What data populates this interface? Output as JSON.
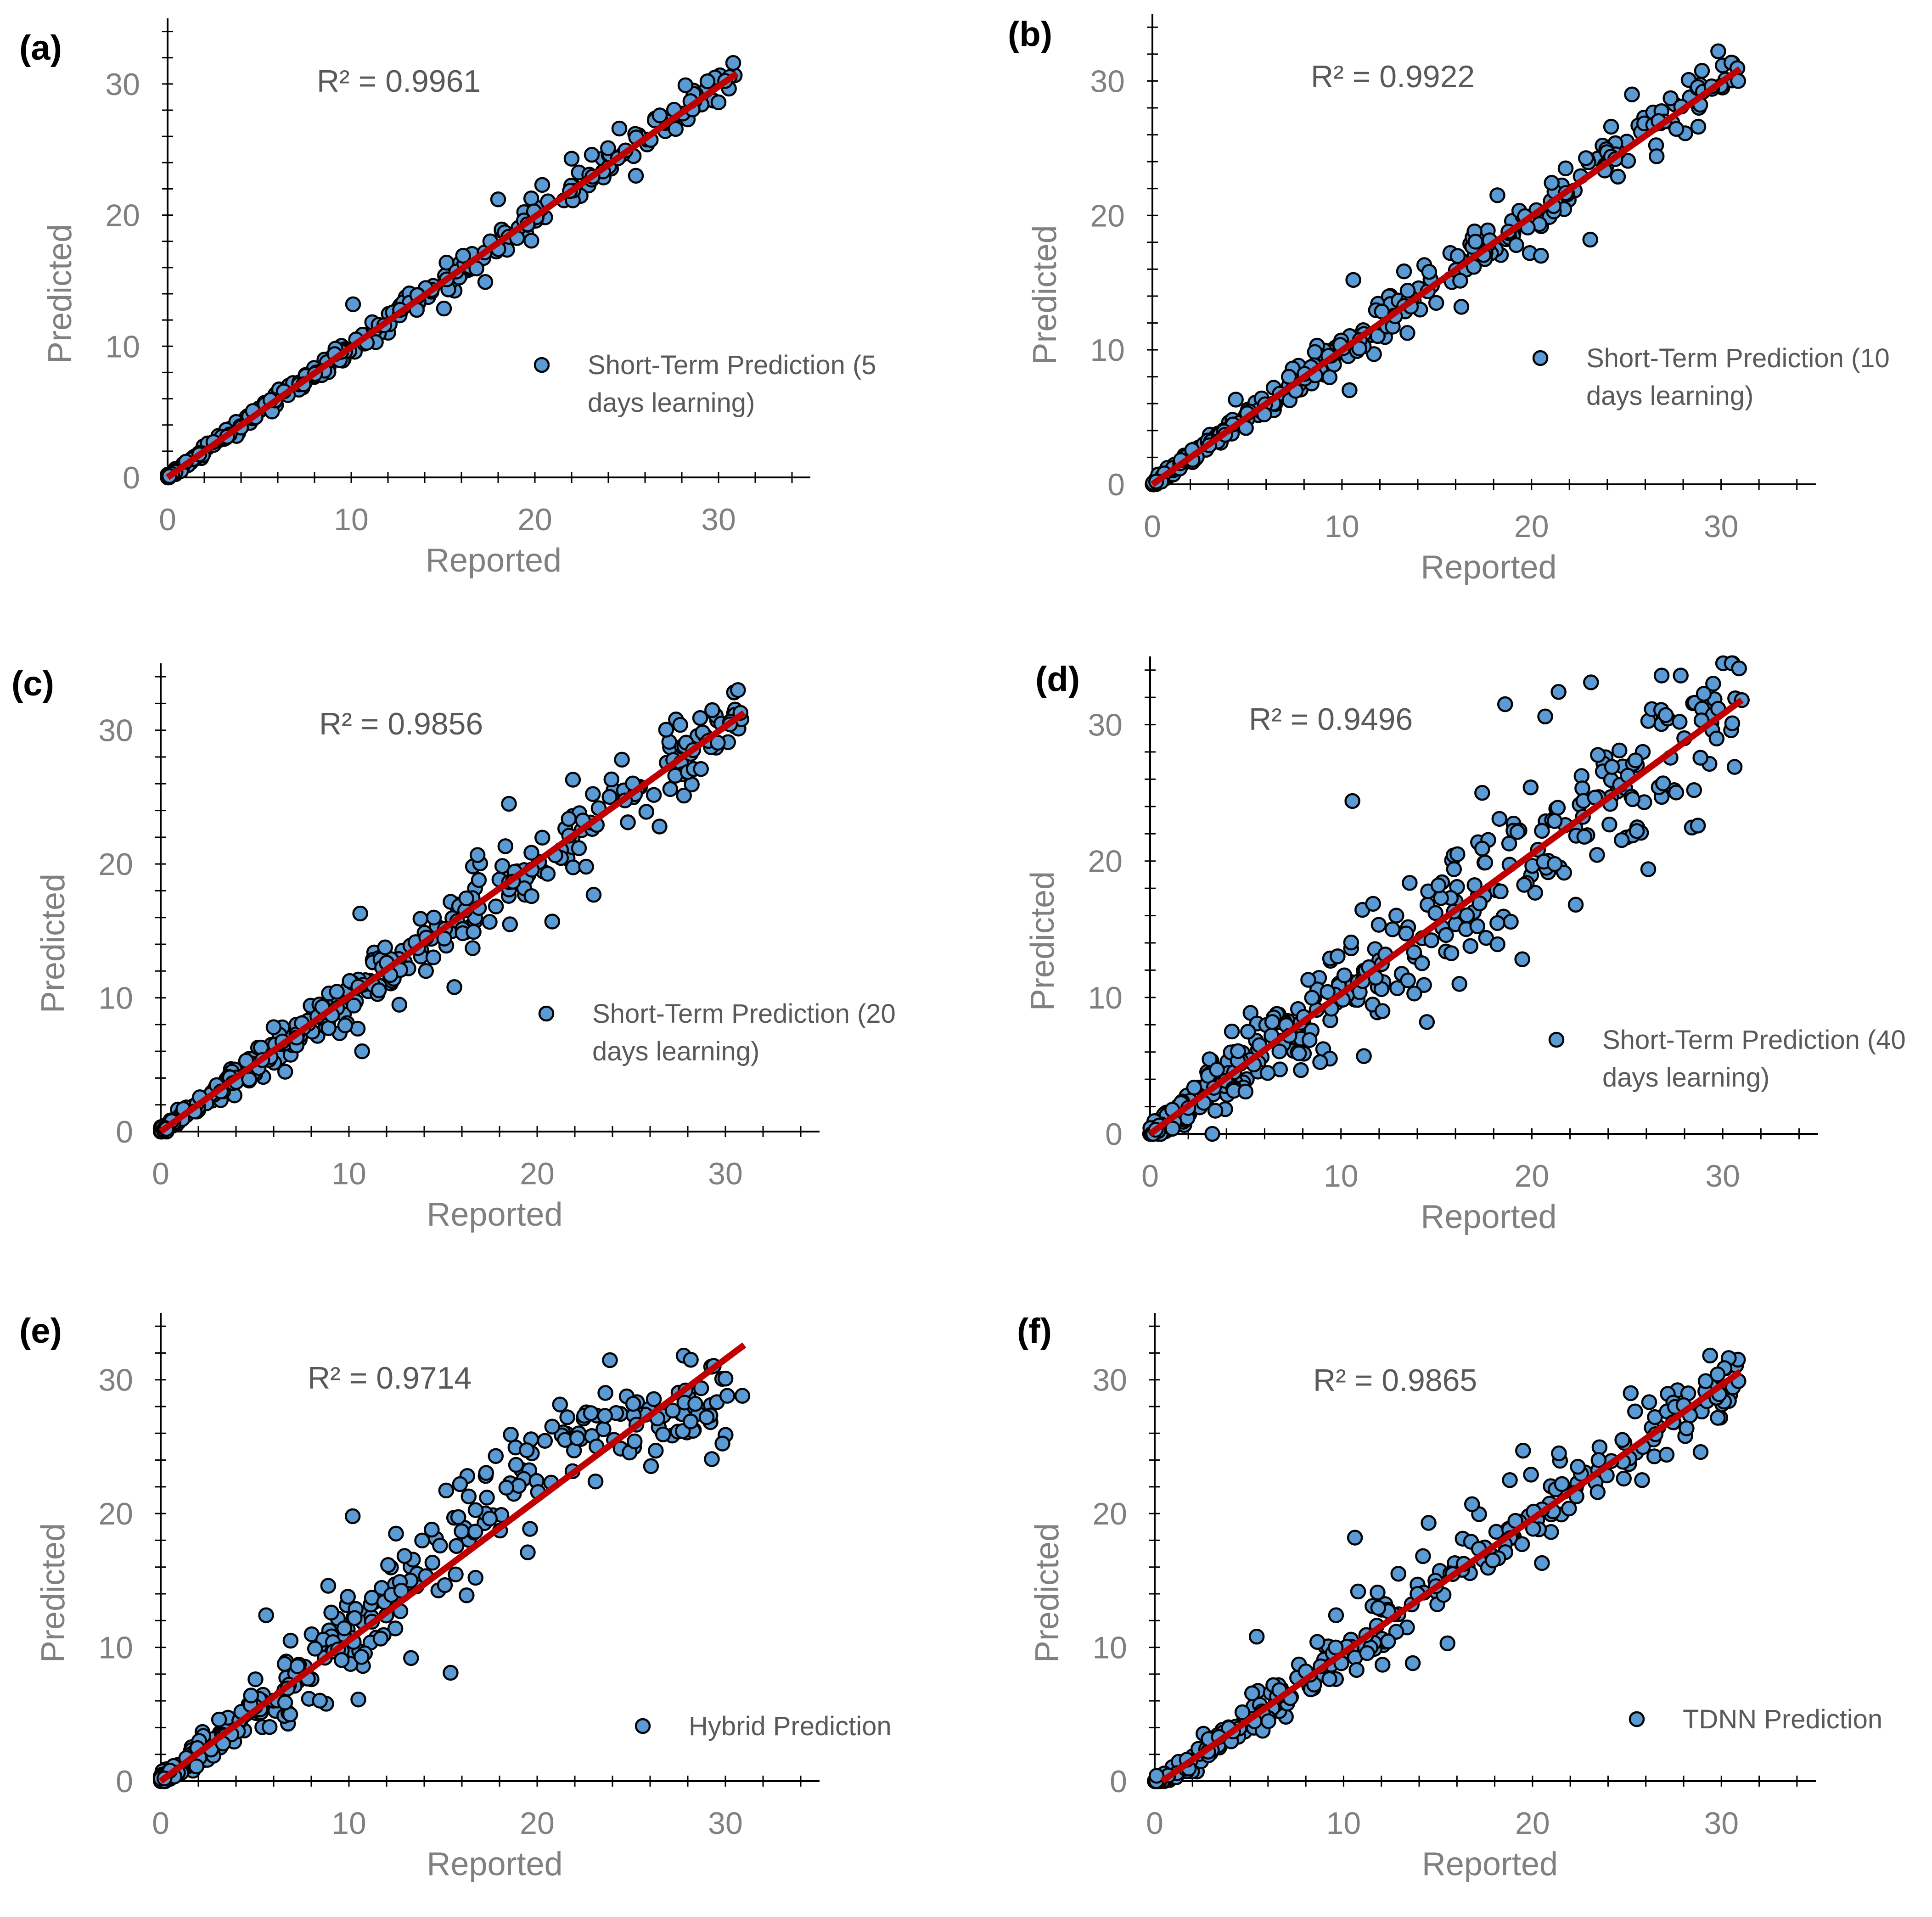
{
  "figure": {
    "x_axis_title": "Reported",
    "y_axis_title": "Predicted",
    "colors": {
      "marker_fill": "#5b9bd5",
      "marker_edge": "#000000",
      "fit_line": "#c00000",
      "axis": "#000000",
      "label": "#808080",
      "text": "#595959"
    }
  },
  "chart_data": [
    {
      "type": "scatter",
      "panel_label": "(a)",
      "r2_label": "R² = 0.9961",
      "legend_lines": [
        "Short-Term Prediction (5",
        "days learning)"
      ],
      "xlabel": "Reported",
      "ylabel": "Predicted",
      "xlim": [
        0,
        35
      ],
      "ylim": [
        0,
        35
      ],
      "xticks": [
        0,
        10,
        20,
        30
      ],
      "yticks": [
        0,
        10,
        20,
        30
      ],
      "trendline": [
        [
          0,
          0
        ],
        [
          31,
          30.8
        ]
      ],
      "noise": 0.55,
      "seed": 11,
      "n_points": 300,
      "points": [
        [
          0.1,
          0.1
        ],
        [
          1.0,
          1.2
        ],
        [
          2.5,
          2.7
        ],
        [
          4.0,
          3.8
        ],
        [
          5.6,
          5.9
        ],
        [
          7.4,
          7.1
        ],
        [
          9.1,
          9.4
        ],
        [
          10.1,
          13.2
        ],
        [
          11.8,
          11.6
        ],
        [
          13.6,
          13.9
        ],
        [
          15.2,
          15.1
        ],
        [
          17.3,
          14.9
        ],
        [
          18.0,
          21.2
        ],
        [
          19.6,
          19.3
        ],
        [
          20.4,
          22.3
        ],
        [
          22.0,
          24.3
        ],
        [
          23.1,
          24.6
        ],
        [
          24.6,
          26.6
        ],
        [
          25.5,
          23.0
        ],
        [
          26.8,
          27.6
        ],
        [
          28.2,
          29.9
        ],
        [
          29.4,
          30.2
        ],
        [
          30.0,
          28.6
        ],
        [
          30.8,
          31.6
        ]
      ]
    },
    {
      "type": "scatter",
      "panel_label": "(b)",
      "r2_label": "R² = 0.9922",
      "legend_lines": [
        "Short-Term Prediction (10",
        "days learning)"
      ],
      "xlabel": "Reported",
      "ylabel": "Predicted",
      "xlim": [
        0,
        35
      ],
      "ylim": [
        0,
        35
      ],
      "xticks": [
        0,
        10,
        20,
        30
      ],
      "yticks": [
        0,
        10,
        20,
        30
      ],
      "trendline": [
        [
          0,
          0
        ],
        [
          31,
          30.9
        ]
      ],
      "noise": 0.9,
      "seed": 23,
      "n_points": 320,
      "points": [
        [
          0.2,
          0.2
        ],
        [
          1.5,
          1.8
        ],
        [
          3.0,
          2.9
        ],
        [
          4.4,
          6.3
        ],
        [
          5.9,
          5.2
        ],
        [
          7.2,
          8.0
        ],
        [
          8.6,
          8.1
        ],
        [
          10.4,
          7.0
        ],
        [
          10.6,
          15.2
        ],
        [
          12.8,
          12.5
        ],
        [
          14.6,
          15.8
        ],
        [
          16.3,
          13.2
        ],
        [
          18.2,
          21.5
        ],
        [
          19.8,
          19.1
        ],
        [
          20.5,
          17.0
        ],
        [
          21.8,
          23.5
        ],
        [
          23.1,
          18.2
        ],
        [
          24.2,
          26.6
        ],
        [
          25.3,
          29.0
        ],
        [
          26.6,
          24.4
        ],
        [
          27.9,
          28.1
        ],
        [
          28.8,
          26.6
        ],
        [
          29.5,
          29.6
        ],
        [
          30.9,
          30.0
        ]
      ]
    },
    {
      "type": "scatter",
      "panel_label": "(c)",
      "r2_label": "R² = 0.9856",
      "legend_lines": [
        "Short-Term Prediction (20",
        "days learning)"
      ],
      "xlabel": "Reported",
      "ylabel": "Predicted",
      "xlim": [
        0,
        35
      ],
      "ylim": [
        0,
        35
      ],
      "xticks": [
        0,
        10,
        20,
        30
      ],
      "yticks": [
        0,
        10,
        20,
        30
      ],
      "trendline": [
        [
          0,
          0
        ],
        [
          31,
          31.3
        ]
      ],
      "noise": 1.2,
      "seed": 37,
      "n_points": 340,
      "points": [
        [
          0.3,
          0.2
        ],
        [
          1.8,
          1.5
        ],
        [
          3.2,
          3.0
        ],
        [
          4.7,
          3.9
        ],
        [
          6.0,
          7.8
        ],
        [
          7.5,
          8.1
        ],
        [
          9.1,
          8.7
        ],
        [
          10.6,
          16.3
        ],
        [
          10.7,
          6.0
        ],
        [
          12.2,
          11.7
        ],
        [
          13.8,
          15.9
        ],
        [
          15.6,
          10.8
        ],
        [
          16.9,
          18.8
        ],
        [
          18.5,
          24.5
        ],
        [
          19.7,
          17.6
        ],
        [
          20.8,
          15.7
        ],
        [
          21.9,
          26.3
        ],
        [
          22.6,
          19.8
        ],
        [
          23.0,
          17.7
        ],
        [
          24.5,
          27.8
        ],
        [
          25.8,
          23.9
        ],
        [
          26.5,
          22.8
        ],
        [
          27.6,
          30.4
        ],
        [
          28.7,
          27.1
        ],
        [
          29.3,
          31.5
        ],
        [
          30.8,
          31.3
        ]
      ]
    },
    {
      "type": "scatter",
      "panel_label": "(d)",
      "r2_label": "R² = 0.9496",
      "legend_lines": [
        "Short-Term Prediction (40",
        "days learning)"
      ],
      "xlabel": "Reported",
      "ylabel": "Predicted",
      "xlim": [
        0,
        35
      ],
      "ylim": [
        0,
        35
      ],
      "xticks": [
        0,
        10,
        20,
        30
      ],
      "yticks": [
        0,
        10,
        20,
        30
      ],
      "trendline": [
        [
          0,
          0
        ],
        [
          31,
          31.8
        ]
      ],
      "noise": 2.6,
      "seed": 41,
      "n_points": 360,
      "points": [
        [
          0.3,
          0.3
        ],
        [
          2.0,
          1.9
        ],
        [
          3.5,
          4.7
        ],
        [
          5.0,
          3.1
        ],
        [
          6.4,
          8.2
        ],
        [
          7.8,
          5.9
        ],
        [
          9.3,
          10.4
        ],
        [
          10.6,
          24.4
        ],
        [
          11.2,
          5.7
        ],
        [
          12.9,
          16.0
        ],
        [
          13.6,
          18.4
        ],
        [
          14.5,
          8.2
        ],
        [
          16.1,
          20.5
        ],
        [
          17.4,
          25.0
        ],
        [
          18.2,
          13.9
        ],
        [
          18.6,
          31.5
        ],
        [
          19.5,
          12.8
        ],
        [
          20.7,
          30.6
        ],
        [
          21.4,
          32.4
        ],
        [
          22.3,
          16.8
        ],
        [
          23.1,
          33.1
        ],
        [
          24.2,
          26.9
        ],
        [
          25.5,
          22.2
        ],
        [
          26.1,
          19.4
        ],
        [
          26.8,
          33.6
        ],
        [
          27.8,
          33.6
        ],
        [
          28.5,
          25.2
        ],
        [
          28.7,
          22.6
        ],
        [
          29.5,
          33.0
        ],
        [
          30.5,
          30.1
        ],
        [
          31.0,
          31.8
        ]
      ]
    },
    {
      "type": "scatter",
      "panel_label": "(e)",
      "r2_label": "R² = 0.9714",
      "legend_lines": [
        "Hybrid Prediction"
      ],
      "xlabel": "Reported",
      "ylabel": "Predicted",
      "xlim": [
        0,
        35
      ],
      "ylim": [
        0,
        35
      ],
      "xticks": [
        0,
        10,
        20,
        30
      ],
      "yticks": [
        0,
        10,
        20,
        30
      ],
      "trendline": [
        [
          0,
          0
        ],
        [
          31,
          32.6
        ]
      ],
      "noise": 1.8,
      "seed": 53,
      "n_points": 340,
      "curve": "saturate",
      "points": [
        [
          0.2,
          0.2
        ],
        [
          1.9,
          1.1
        ],
        [
          3.1,
          4.6
        ],
        [
          4.8,
          6.4
        ],
        [
          5.6,
          12.4
        ],
        [
          6.9,
          10.5
        ],
        [
          8.2,
          9.9
        ],
        [
          8.9,
          14.6
        ],
        [
          10.2,
          19.8
        ],
        [
          10.5,
          6.1
        ],
        [
          12.5,
          18.5
        ],
        [
          13.3,
          9.2
        ],
        [
          14.4,
          18.8
        ],
        [
          15.4,
          8.1
        ],
        [
          15.9,
          22.2
        ],
        [
          17.8,
          24.3
        ],
        [
          18.6,
          25.9
        ],
        [
          19.5,
          17.1
        ],
        [
          20.8,
          26.5
        ],
        [
          21.6,
          27.2
        ],
        [
          23.1,
          22.4
        ],
        [
          23.6,
          27.3
        ],
        [
          25.1,
          28.2
        ],
        [
          26.3,
          24.7
        ],
        [
          27.2,
          27.7
        ],
        [
          28.4,
          28.2
        ],
        [
          29.0,
          27.2
        ],
        [
          30.1,
          28.8
        ],
        [
          30.9,
          28.8
        ]
      ]
    },
    {
      "type": "scatter",
      "panel_label": "(f)",
      "r2_label": "R² = 0.9865",
      "legend_lines": [
        "TDNN Prediction"
      ],
      "xlabel": "Reported",
      "ylabel": "Predicted",
      "xlim": [
        0,
        35
      ],
      "ylim": [
        0,
        35
      ],
      "xticks": [
        0,
        10,
        20,
        30
      ],
      "yticks": [
        0,
        10,
        20,
        30
      ],
      "trendline": [
        [
          0.4,
          0
        ],
        [
          31,
          30.6
        ]
      ],
      "noise": 1.25,
      "seed": 67,
      "n_points": 330,
      "points": [
        [
          0.1,
          0.4
        ],
        [
          1.7,
          1.6
        ],
        [
          3.4,
          3.3
        ],
        [
          5.4,
          10.8
        ],
        [
          6.6,
          6.8
        ],
        [
          8.0,
          8.2
        ],
        [
          9.6,
          12.4
        ],
        [
          10.6,
          18.2
        ],
        [
          11.8,
          14.1
        ],
        [
          12.9,
          15.5
        ],
        [
          14.5,
          19.3
        ],
        [
          15.5,
          10.3
        ],
        [
          16.8,
          20.7
        ],
        [
          17.9,
          16.5
        ],
        [
          18.8,
          22.5
        ],
        [
          19.5,
          24.7
        ],
        [
          20.5,
          16.3
        ],
        [
          21.4,
          24.5
        ],
        [
          22.4,
          23.5
        ],
        [
          23.5,
          24.0
        ],
        [
          25.2,
          29.0
        ],
        [
          25.8,
          22.5
        ],
        [
          27.1,
          24.4
        ],
        [
          28.0,
          28.1
        ],
        [
          28.9,
          24.6
        ],
        [
          29.8,
          30.4
        ],
        [
          30.9,
          29.9
        ]
      ]
    }
  ]
}
